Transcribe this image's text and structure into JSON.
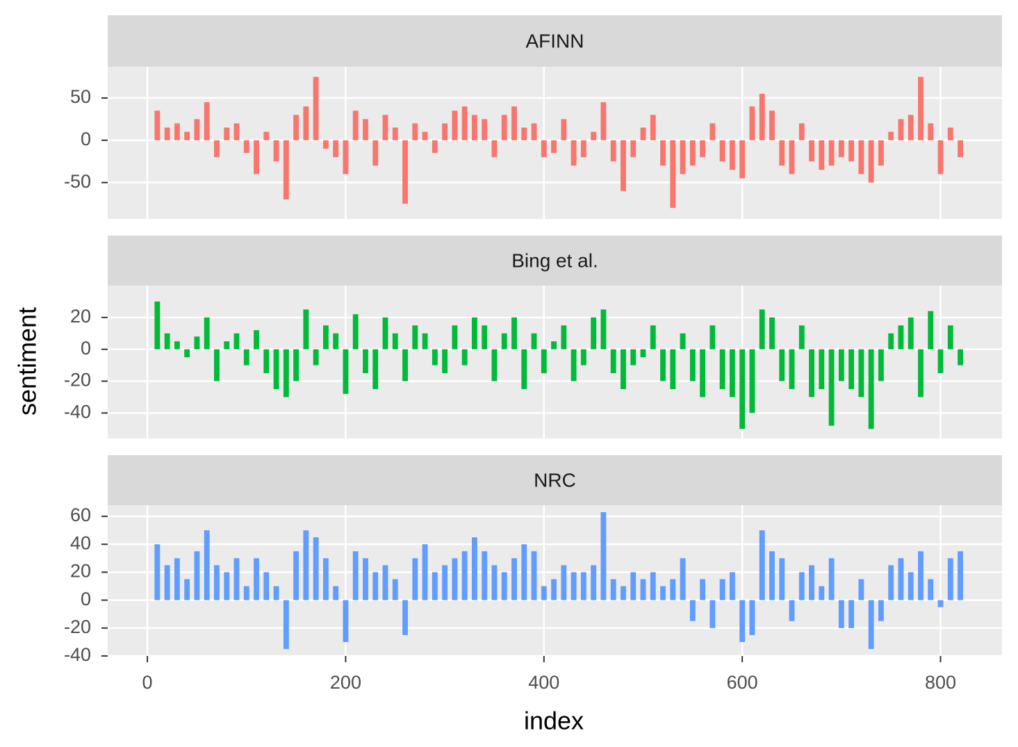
{
  "x_label": "index",
  "y_label": "sentiment",
  "chart_data": [
    {
      "type": "bar",
      "title": "AFINN",
      "color": "#F8766D",
      "x": [
        10,
        20,
        30,
        40,
        50,
        60,
        70,
        80,
        90,
        100,
        110,
        120,
        130,
        140,
        150,
        160,
        170,
        180,
        190,
        200,
        210,
        220,
        230,
        240,
        250,
        260,
        270,
        280,
        290,
        300,
        310,
        320,
        330,
        340,
        350,
        360,
        370,
        380,
        390,
        400,
        410,
        420,
        430,
        440,
        450,
        460,
        470,
        480,
        490,
        500,
        510,
        520,
        530,
        540,
        550,
        560,
        570,
        580,
        590,
        600,
        610,
        620,
        630,
        640,
        650,
        660,
        670,
        680,
        690,
        700,
        710,
        720,
        730,
        740,
        750,
        760,
        770,
        780,
        790,
        800,
        810,
        820
      ],
      "values": [
        35,
        15,
        20,
        10,
        25,
        45,
        -20,
        15,
        20,
        -15,
        -40,
        10,
        -25,
        -70,
        30,
        40,
        75,
        -10,
        -20,
        -40,
        35,
        25,
        -30,
        30,
        15,
        -75,
        20,
        10,
        -15,
        20,
        35,
        40,
        30,
        25,
        -20,
        30,
        40,
        15,
        20,
        -20,
        -15,
        25,
        -30,
        -20,
        10,
        45,
        -25,
        -60,
        -20,
        15,
        30,
        -30,
        -80,
        -40,
        -30,
        -20,
        20,
        -25,
        -35,
        -45,
        40,
        55,
        35,
        -30,
        -40,
        20,
        -25,
        -35,
        -30,
        -20,
        -25,
        -40,
        -50,
        -30,
        10,
        25,
        30,
        75,
        20,
        -40,
        15,
        -20
      ],
      "xlim": [
        -40,
        862
      ],
      "ylim": [
        -93,
        87
      ],
      "xticks": [
        0,
        200,
        400,
        600,
        800
      ],
      "yticks": [
        -50,
        0,
        50
      ]
    },
    {
      "type": "bar",
      "title": "Bing et al.",
      "color": "#00BA38",
      "x": [
        10,
        20,
        30,
        40,
        50,
        60,
        70,
        80,
        90,
        100,
        110,
        120,
        130,
        140,
        150,
        160,
        170,
        180,
        190,
        200,
        210,
        220,
        230,
        240,
        250,
        260,
        270,
        280,
        290,
        300,
        310,
        320,
        330,
        340,
        350,
        360,
        370,
        380,
        390,
        400,
        410,
        420,
        430,
        440,
        450,
        460,
        470,
        480,
        490,
        500,
        510,
        520,
        530,
        540,
        550,
        560,
        570,
        580,
        590,
        600,
        610,
        620,
        630,
        640,
        650,
        660,
        670,
        680,
        690,
        700,
        710,
        720,
        730,
        740,
        750,
        760,
        770,
        780,
        790,
        800,
        810,
        820
      ],
      "values": [
        30,
        10,
        5,
        -5,
        8,
        20,
        -20,
        5,
        10,
        -10,
        12,
        -15,
        -25,
        -30,
        -20,
        25,
        -10,
        15,
        10,
        -28,
        22,
        -15,
        -25,
        20,
        10,
        -20,
        15,
        10,
        -10,
        -15,
        15,
        -10,
        20,
        15,
        -20,
        10,
        20,
        -25,
        10,
        -15,
        5,
        15,
        -20,
        -10,
        20,
        25,
        -15,
        -25,
        -10,
        -5,
        15,
        -20,
        -25,
        10,
        -20,
        -30,
        15,
        -25,
        -30,
        -50,
        -40,
        25,
        20,
        -20,
        -25,
        15,
        -30,
        -25,
        -48,
        -20,
        -25,
        -30,
        -50,
        -20,
        10,
        15,
        20,
        -30,
        24,
        -15,
        15,
        -10
      ],
      "xlim": [
        -40,
        862
      ],
      "ylim": [
        -56,
        40
      ],
      "xticks": [
        0,
        200,
        400,
        600,
        800
      ],
      "yticks": [
        -40,
        -20,
        0,
        20
      ]
    },
    {
      "type": "bar",
      "title": "NRC",
      "color": "#619CFF",
      "x": [
        10,
        20,
        30,
        40,
        50,
        60,
        70,
        80,
        90,
        100,
        110,
        120,
        130,
        140,
        150,
        160,
        170,
        180,
        190,
        200,
        210,
        220,
        230,
        240,
        250,
        260,
        270,
        280,
        290,
        300,
        310,
        320,
        330,
        340,
        350,
        360,
        370,
        380,
        390,
        400,
        410,
        420,
        430,
        440,
        450,
        460,
        470,
        480,
        490,
        500,
        510,
        520,
        530,
        540,
        550,
        560,
        570,
        580,
        590,
        600,
        610,
        620,
        630,
        640,
        650,
        660,
        670,
        680,
        690,
        700,
        710,
        720,
        730,
        740,
        750,
        760,
        770,
        780,
        790,
        800,
        810,
        820
      ],
      "values": [
        40,
        25,
        30,
        15,
        35,
        50,
        25,
        20,
        30,
        10,
        30,
        20,
        10,
        -35,
        35,
        50,
        45,
        30,
        10,
        -30,
        35,
        30,
        20,
        25,
        15,
        -25,
        30,
        40,
        20,
        25,
        30,
        35,
        45,
        35,
        25,
        20,
        30,
        40,
        35,
        10,
        15,
        25,
        20,
        20,
        25,
        63,
        15,
        10,
        20,
        15,
        20,
        10,
        15,
        30,
        -15,
        15,
        -20,
        15,
        20,
        -30,
        -25,
        50,
        35,
        30,
        -15,
        20,
        25,
        10,
        30,
        -20,
        -20,
        15,
        -35,
        -15,
        25,
        30,
        20,
        35,
        15,
        -5,
        30,
        35
      ],
      "xlim": [
        -40,
        862
      ],
      "ylim": [
        -40,
        68
      ],
      "xticks": [
        0,
        200,
        400,
        600,
        800
      ],
      "yticks": [
        -40,
        -20,
        0,
        20,
        40,
        60
      ]
    }
  ]
}
